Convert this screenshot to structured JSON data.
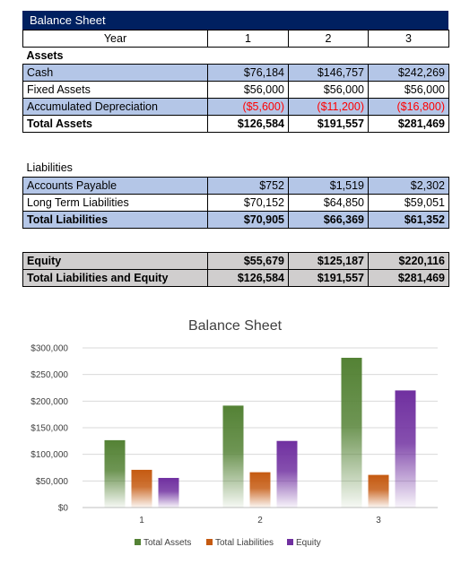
{
  "sheet": {
    "title": "Balance Sheet",
    "header": [
      "Year",
      "1",
      "2",
      "3"
    ],
    "assets_label": "Assets",
    "assets": [
      {
        "label": "Cash",
        "values": [
          "$76,184",
          "$146,757",
          "$242,269"
        ],
        "style": "blue"
      },
      {
        "label": "Fixed Assets",
        "values": [
          "$56,000",
          "$56,000",
          "$56,000"
        ],
        "style": "white"
      },
      {
        "label": "Accumulated Depreciation",
        "values": [
          "($5,600)",
          "($11,200)",
          "($16,800)"
        ],
        "style": "blue",
        "negative": true
      }
    ],
    "total_assets": {
      "label": "Total Assets",
      "values": [
        "$126,584",
        "$191,557",
        "$281,469"
      ]
    },
    "liabilities_label": "Liabilities",
    "liabilities": [
      {
        "label": "Accounts Payable",
        "values": [
          "$752",
          "$1,519",
          "$2,302"
        ],
        "style": "blue"
      },
      {
        "label": "Long Term Liabilities",
        "values": [
          "$70,152",
          "$64,850",
          "$59,051"
        ],
        "style": "white"
      }
    ],
    "total_liabilities": {
      "label": "Total Liabilities",
      "values": [
        "$70,905",
        "$66,369",
        "$61,352"
      ]
    },
    "equity": {
      "label": "Equity",
      "values": [
        "$55,679",
        "$125,187",
        "$220,116"
      ]
    },
    "total_le": {
      "label": "Total Liabilities and Equity",
      "values": [
        "$126,584",
        "$191,557",
        "$281,469"
      ]
    }
  },
  "colors": {
    "header_bg": "#002060",
    "blue_row": "#b4c6e7",
    "gray_row": "#d0cece",
    "negative": "#ff0000",
    "series": [
      "#548235",
      "#c55a11",
      "#7030a0"
    ]
  },
  "chart_data": {
    "type": "bar",
    "title": "Balance Sheet",
    "categories": [
      "1",
      "2",
      "3"
    ],
    "series": [
      {
        "name": "Total Assets",
        "values": [
          126584,
          191557,
          281469
        ]
      },
      {
        "name": "Total Liabilities",
        "values": [
          70905,
          66369,
          61352
        ]
      },
      {
        "name": "Equity",
        "values": [
          55679,
          125187,
          220116
        ]
      }
    ],
    "ylim": [
      0,
      300000
    ],
    "yticks": [
      "$0",
      "$50,000",
      "$100,000",
      "$150,000",
      "$200,000",
      "$250,000",
      "$300,000"
    ],
    "ytick_values": [
      0,
      50000,
      100000,
      150000,
      200000,
      250000,
      300000
    ],
    "grid": true,
    "legend_position": "bottom"
  }
}
